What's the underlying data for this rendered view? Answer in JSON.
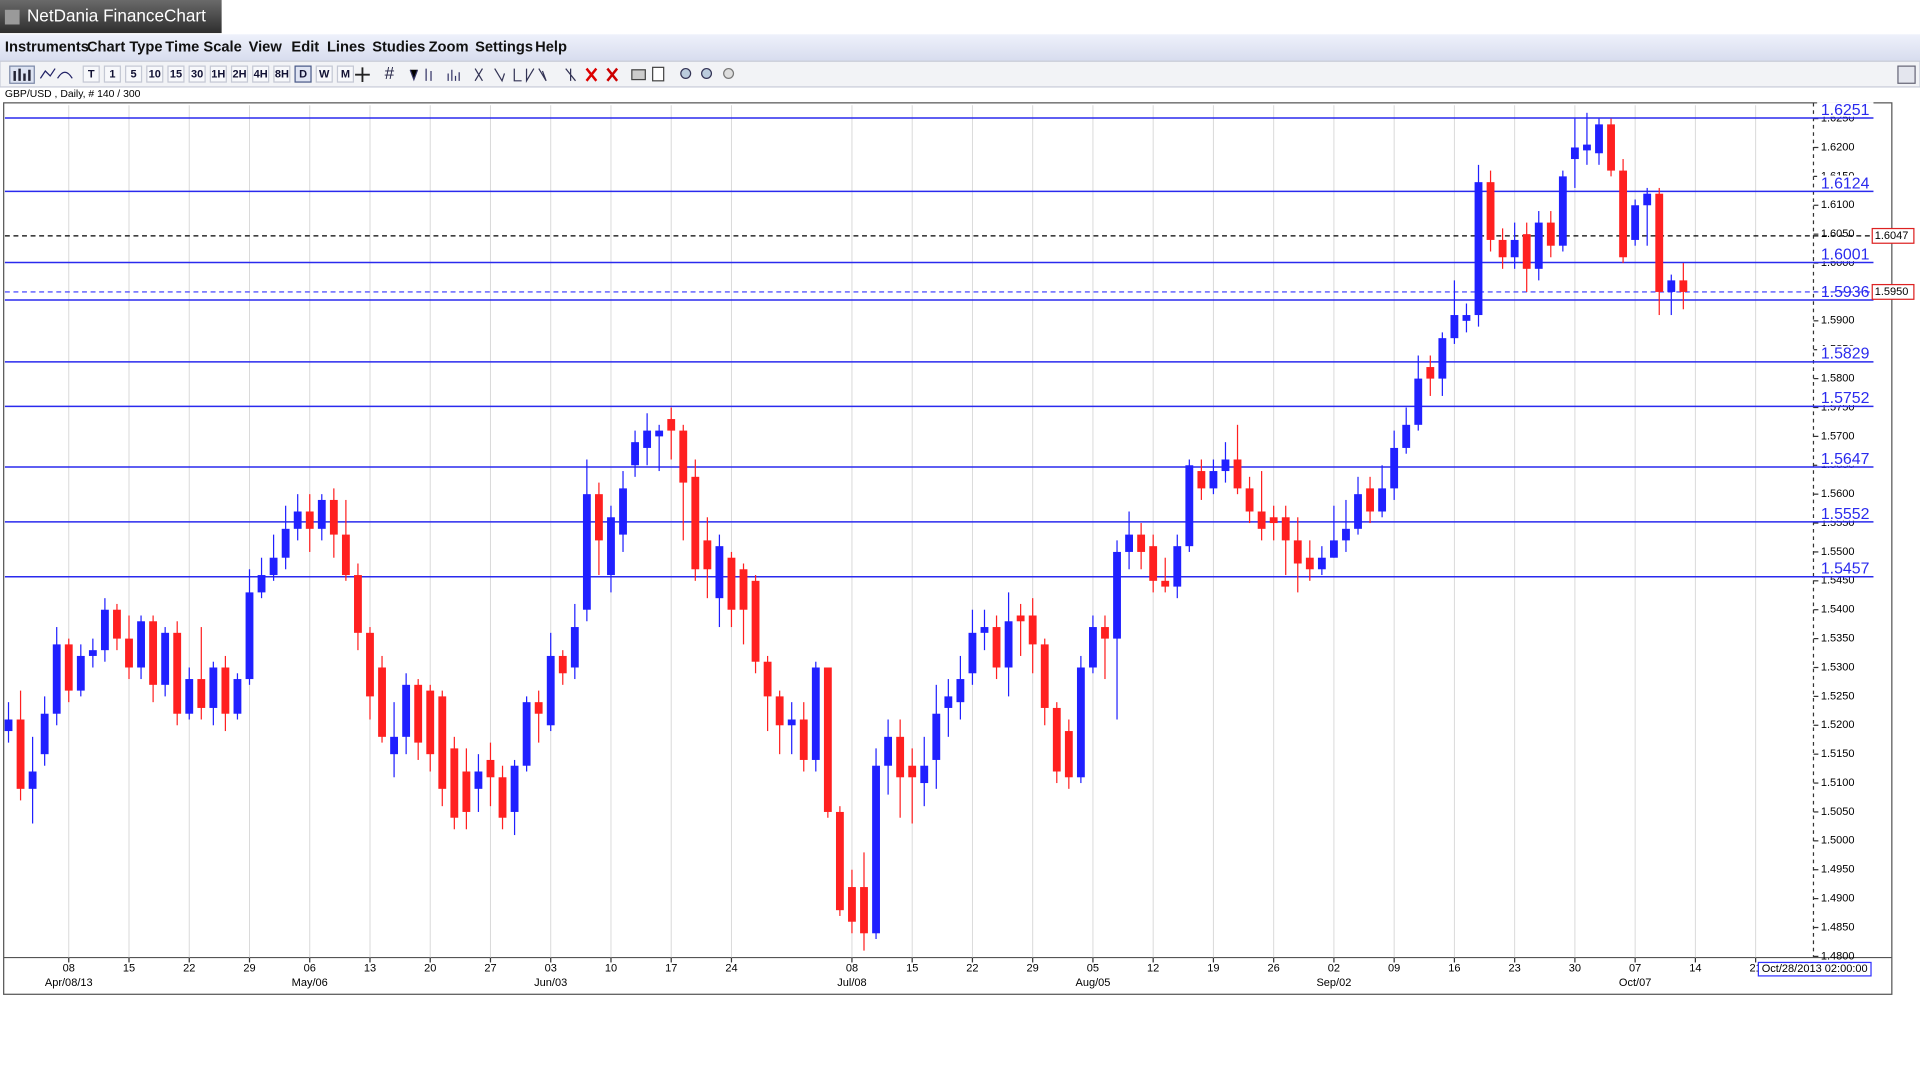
{
  "window": {
    "title": "NetDania FinanceChart"
  },
  "menu": [
    "Instruments",
    "Chart Type",
    "Time Scale",
    "View",
    "Edit",
    "Lines",
    "Studies",
    "Zoom",
    "Settings",
    "Help"
  ],
  "toolbar": {
    "timeframes": [
      "T",
      "1",
      "5",
      "10",
      "15",
      "30",
      "1H",
      "2H",
      "4H",
      "8H",
      "D",
      "W",
      "M"
    ]
  },
  "chart_data": {
    "type": "candlestick",
    "instrument_label": "GBP/USD , Daily, # 140 / 300",
    "rising_color": "#2020ff",
    "falling_color": "#ff2020",
    "open": [
      1.519,
      1.521,
      1.509,
      1.515,
      1.522,
      1.534,
      1.526,
      1.532,
      1.533,
      1.54,
      1.535,
      1.53,
      1.538,
      1.527,
      1.536,
      1.522,
      1.528,
      1.523,
      1.53,
      1.522,
      1.528,
      1.543,
      1.546,
      1.549,
      1.554,
      1.557,
      1.554,
      1.559,
      1.553,
      1.546,
      1.536,
      1.53,
      1.515,
      1.518,
      1.527,
      1.526,
      1.525,
      1.516,
      1.512,
      1.509,
      1.514,
      1.511,
      1.505,
      1.513,
      1.524,
      1.52,
      1.532,
      1.53,
      1.54,
      1.56,
      1.546,
      1.553,
      1.565,
      1.568,
      1.57,
      1.573,
      1.571,
      1.563,
      1.552,
      1.542,
      1.549,
      1.547,
      1.545,
      1.531,
      1.525,
      1.52,
      1.521,
      1.514,
      1.53,
      1.505,
      1.492,
      1.492,
      1.484,
      1.513,
      1.518,
      1.513,
      1.51,
      1.514,
      1.523,
      1.524,
      1.529,
      1.536,
      1.537,
      1.53,
      1.539,
      1.539,
      1.534,
      1.523,
      1.519,
      1.511,
      1.53,
      1.537,
      1.535,
      1.55,
      1.553,
      1.551,
      1.545,
      1.544,
      1.551,
      1.564,
      1.561,
      1.564,
      1.566,
      1.561,
      1.557,
      1.556,
      1.556,
      1.552,
      1.549,
      1.547,
      1.549,
      1.552,
      1.554,
      1.561,
      1.557,
      1.561,
      1.568,
      1.572,
      1.582,
      1.58,
      1.587,
      1.59,
      1.591,
      1.614,
      1.604,
      1.601,
      1.605,
      1.599,
      1.607,
      1.603,
      1.618,
      1.6195,
      1.619,
      1.624,
      1.616,
      1.604,
      1.61,
      1.612,
      1.595,
      1.597
    ],
    "high": [
      1.524,
      1.526,
      1.518,
      1.525,
      1.537,
      1.535,
      1.534,
      1.535,
      1.542,
      1.541,
      1.539,
      1.539,
      1.539,
      1.537,
      1.538,
      1.53,
      1.537,
      1.531,
      1.532,
      1.529,
      1.547,
      1.549,
      1.553,
      1.558,
      1.56,
      1.56,
      1.56,
      1.561,
      1.559,
      1.548,
      1.537,
      1.532,
      1.524,
      1.529,
      1.528,
      1.527,
      1.526,
      1.518,
      1.516,
      1.515,
      1.517,
      1.513,
      1.514,
      1.525,
      1.526,
      1.536,
      1.533,
      1.541,
      1.566,
      1.562,
      1.558,
      1.564,
      1.571,
      1.574,
      1.572,
      1.575,
      1.572,
      1.566,
      1.556,
      1.553,
      1.55,
      1.548,
      1.546,
      1.532,
      1.526,
      1.524,
      1.524,
      1.531,
      1.53,
      1.506,
      1.495,
      1.498,
      1.516,
      1.521,
      1.521,
      1.516,
      1.518,
      1.527,
      1.528,
      1.532,
      1.54,
      1.54,
      1.539,
      1.543,
      1.541,
      1.542,
      1.535,
      1.524,
      1.521,
      1.532,
      1.539,
      1.539,
      1.552,
      1.557,
      1.555,
      1.553,
      1.549,
      1.553,
      1.566,
      1.566,
      1.566,
      1.569,
      1.572,
      1.563,
      1.564,
      1.558,
      1.558,
      1.556,
      1.552,
      1.551,
      1.558,
      1.559,
      1.563,
      1.563,
      1.565,
      1.571,
      1.575,
      1.584,
      1.584,
      1.588,
      1.597,
      1.593,
      1.617,
      1.616,
      1.606,
      1.607,
      1.607,
      1.609,
      1.609,
      1.616,
      1.625,
      1.626,
      1.625,
      1.625,
      1.618,
      1.611,
      1.613,
      1.613,
      1.598,
      1.6
    ],
    "low": [
      1.517,
      1.507,
      1.503,
      1.513,
      1.52,
      1.524,
      1.525,
      1.53,
      1.531,
      1.533,
      1.528,
      1.528,
      1.524,
      1.525,
      1.52,
      1.521,
      1.521,
      1.52,
      1.519,
      1.521,
      1.527,
      1.542,
      1.545,
      1.547,
      1.552,
      1.55,
      1.552,
      1.549,
      1.545,
      1.533,
      1.521,
      1.517,
      1.511,
      1.515,
      1.514,
      1.512,
      1.506,
      1.502,
      1.502,
      1.505,
      1.506,
      1.502,
      1.501,
      1.512,
      1.517,
      1.519,
      1.527,
      1.528,
      1.538,
      1.546,
      1.543,
      1.55,
      1.563,
      1.565,
      1.564,
      1.566,
      1.552,
      1.545,
      1.542,
      1.537,
      1.537,
      1.534,
      1.529,
      1.519,
      1.515,
      1.515,
      1.512,
      1.512,
      1.504,
      1.487,
      1.484,
      1.481,
      1.483,
      1.508,
      1.504,
      1.503,
      1.506,
      1.509,
      1.518,
      1.521,
      1.527,
      1.533,
      1.528,
      1.525,
      1.532,
      1.529,
      1.52,
      1.51,
      1.509,
      1.51,
      1.529,
      1.528,
      1.521,
      1.547,
      1.547,
      1.543,
      1.543,
      1.542,
      1.55,
      1.559,
      1.56,
      1.562,
      1.56,
      1.555,
      1.552,
      1.552,
      1.546,
      1.543,
      1.545,
      1.546,
      1.549,
      1.55,
      1.553,
      1.555,
      1.556,
      1.559,
      1.567,
      1.571,
      1.577,
      1.577,
      1.586,
      1.588,
      1.589,
      1.602,
      1.599,
      1.599,
      1.595,
      1.597,
      1.601,
      1.602,
      1.613,
      1.617,
      1.617,
      1.615,
      1.6,
      1.603,
      1.603,
      1.591,
      1.591,
      1.592
    ],
    "close": [
      1.521,
      1.509,
      1.512,
      1.522,
      1.534,
      1.526,
      1.532,
      1.533,
      1.54,
      1.535,
      1.53,
      1.538,
      1.527,
      1.536,
      1.522,
      1.528,
      1.523,
      1.53,
      1.522,
      1.528,
      1.543,
      1.546,
      1.549,
      1.554,
      1.557,
      1.554,
      1.559,
      1.553,
      1.546,
      1.536,
      1.525,
      1.518,
      1.518,
      1.527,
      1.517,
      1.515,
      1.509,
      1.504,
      1.505,
      1.512,
      1.511,
      1.504,
      1.513,
      1.524,
      1.522,
      1.532,
      1.529,
      1.537,
      1.56,
      1.552,
      1.556,
      1.561,
      1.569,
      1.571,
      1.571,
      1.571,
      1.562,
      1.547,
      1.547,
      1.551,
      1.54,
      1.54,
      1.531,
      1.525,
      1.52,
      1.521,
      1.514,
      1.53,
      1.505,
      1.488,
      1.486,
      1.484,
      1.513,
      1.518,
      1.511,
      1.511,
      1.513,
      1.522,
      1.525,
      1.528,
      1.536,
      1.537,
      1.53,
      1.538,
      1.538,
      1.534,
      1.523,
      1.512,
      1.511,
      1.53,
      1.537,
      1.535,
      1.55,
      1.553,
      1.55,
      1.545,
      1.544,
      1.551,
      1.565,
      1.561,
      1.564,
      1.566,
      1.561,
      1.557,
      1.554,
      1.555,
      1.552,
      1.548,
      1.547,
      1.549,
      1.552,
      1.554,
      1.56,
      1.557,
      1.561,
      1.568,
      1.572,
      1.58,
      1.58,
      1.587,
      1.591,
      1.591,
      1.614,
      1.604,
      1.601,
      1.604,
      1.599,
      1.607,
      1.603,
      1.615,
      1.62,
      1.6205,
      1.624,
      1.616,
      1.601,
      1.61,
      1.612,
      1.595,
      1.597,
      1.595
    ],
    "xlim": [
      -0.3,
      149.8
    ],
    "xticks": [
      {
        "value": 5,
        "label": "08"
      },
      {
        "value": 10,
        "label": "15"
      },
      {
        "value": 15,
        "label": "22"
      },
      {
        "value": 20,
        "label": "29"
      },
      {
        "value": 25,
        "label": "06"
      },
      {
        "value": 30,
        "label": "13"
      },
      {
        "value": 35,
        "label": "20"
      },
      {
        "value": 40,
        "label": "27"
      },
      {
        "value": 45,
        "label": "03"
      },
      {
        "value": 50,
        "label": "10"
      },
      {
        "value": 55,
        "label": "17"
      },
      {
        "value": 60,
        "label": "24"
      },
      {
        "value": 70,
        "label": "08"
      },
      {
        "value": 75,
        "label": "15"
      },
      {
        "value": 80,
        "label": "22"
      },
      {
        "value": 85,
        "label": "29"
      },
      {
        "value": 90,
        "label": "05"
      },
      {
        "value": 95,
        "label": "12"
      },
      {
        "value": 100,
        "label": "19"
      },
      {
        "value": 105,
        "label": "26"
      },
      {
        "value": 110,
        "label": "02"
      },
      {
        "value": 115,
        "label": "09"
      },
      {
        "value": 120,
        "label": "16"
      },
      {
        "value": 125,
        "label": "23"
      },
      {
        "value": 130,
        "label": "30"
      },
      {
        "value": 135,
        "label": "07"
      },
      {
        "value": 140,
        "label": "14"
      },
      {
        "value": 145,
        "label": "21"
      }
    ],
    "xsublabels": [
      {
        "value": 5,
        "label": "Apr/08/13"
      },
      {
        "value": 25,
        "label": "May/06"
      },
      {
        "value": 45,
        "label": "Jun/03"
      },
      {
        "value": 70,
        "label": "Jul/08"
      },
      {
        "value": 90,
        "label": "Aug/05"
      },
      {
        "value": 110,
        "label": "Sep/02"
      },
      {
        "value": 135,
        "label": "Oct/07"
      }
    ],
    "ylim": [
      1.4798,
      1.6273
    ],
    "yticks": [
      {
        "value": 1.48,
        "label": "1.4800"
      },
      {
        "value": 1.485,
        "label": "1.4850"
      },
      {
        "value": 1.49,
        "label": "1.4900"
      },
      {
        "value": 1.495,
        "label": "1.4950"
      },
      {
        "value": 1.5,
        "label": "1.5000"
      },
      {
        "value": 1.505,
        "label": "1.5050"
      },
      {
        "value": 1.51,
        "label": "1.5100"
      },
      {
        "value": 1.515,
        "label": "1.5150"
      },
      {
        "value": 1.52,
        "label": "1.5200"
      },
      {
        "value": 1.525,
        "label": "1.5250"
      },
      {
        "value": 1.53,
        "label": "1.5300"
      },
      {
        "value": 1.535,
        "label": "1.5350"
      },
      {
        "value": 1.54,
        "label": "1.5400"
      },
      {
        "value": 1.545,
        "label": "1.5450"
      },
      {
        "value": 1.55,
        "label": "1.5500"
      },
      {
        "value": 1.555,
        "label": "1.5550"
      },
      {
        "value": 1.56,
        "label": "1.5600"
      },
      {
        "value": 1.565,
        "label": "1.5650"
      },
      {
        "value": 1.57,
        "label": "1.5700"
      },
      {
        "value": 1.575,
        "label": "1.5750"
      },
      {
        "value": 1.58,
        "label": "1.5800"
      },
      {
        "value": 1.585,
        "label": "1.5850"
      },
      {
        "value": 1.59,
        "label": "1.5900"
      },
      {
        "value": 1.595,
        "label": "1.5950"
      },
      {
        "value": 1.6,
        "label": "1.6000"
      },
      {
        "value": 1.605,
        "label": "1.6050"
      },
      {
        "value": 1.61,
        "label": "1.6100"
      },
      {
        "value": 1.615,
        "label": "1.6150"
      },
      {
        "value": 1.62,
        "label": "1.6200"
      },
      {
        "value": 1.625,
        "label": "1.6250"
      }
    ],
    "grid": "x",
    "hlines": [
      1.6251,
      1.6124,
      1.6001,
      1.5936,
      1.5829,
      1.5752,
      1.5647,
      1.5552,
      1.5457
    ],
    "hline_color": "#2a2aee",
    "price_lines": [
      1.6047,
      {
        "value": 1.595,
        "label": "1.5950"
      }
    ],
    "price_line_colors": [
      "#000000",
      "#3030ff"
    ],
    "cursor_label": "Oct/28/2013 02:00:00"
  }
}
